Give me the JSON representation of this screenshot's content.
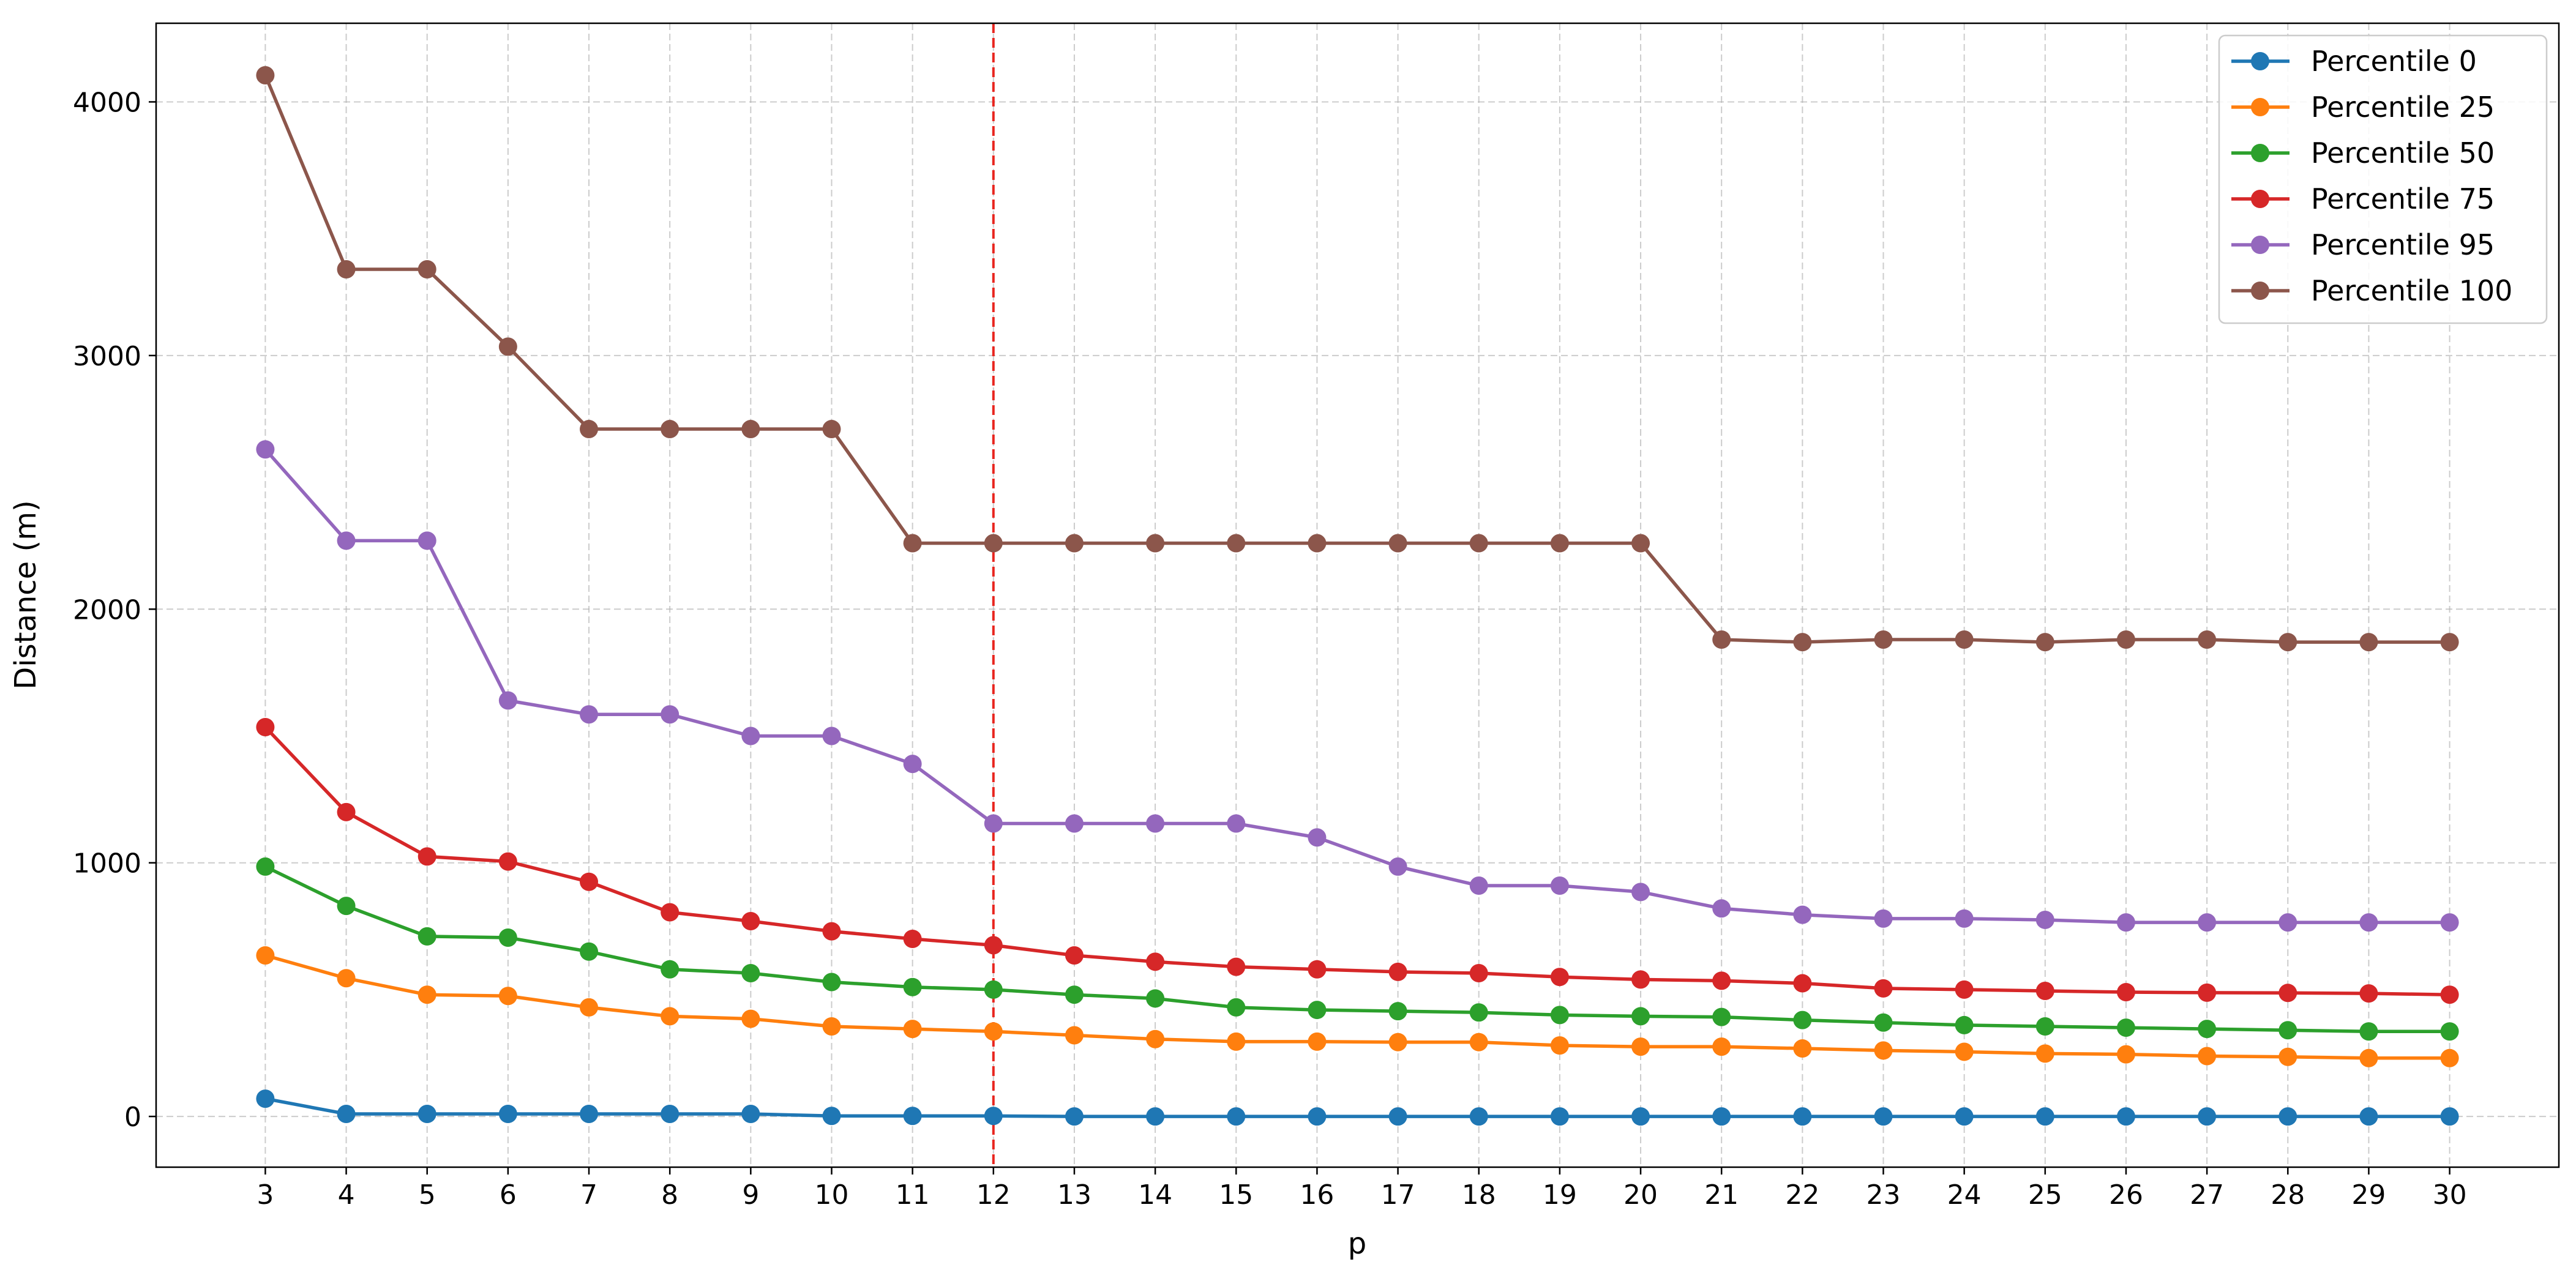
{
  "chart_data": {
    "type": "line",
    "xlabel": "p",
    "ylabel": "Distance (m)",
    "x": [
      3,
      4,
      5,
      6,
      7,
      8,
      9,
      10,
      11,
      12,
      13,
      14,
      15,
      16,
      17,
      18,
      19,
      20,
      21,
      22,
      23,
      24,
      25,
      26,
      27,
      28,
      29,
      30
    ],
    "x_ticks": [
      "3",
      "4",
      "5",
      "6",
      "7",
      "8",
      "9",
      "10",
      "11",
      "12",
      "13",
      "14",
      "15",
      "16",
      "17",
      "18",
      "19",
      "20",
      "21",
      "22",
      "23",
      "24",
      "25",
      "26",
      "27",
      "28",
      "29",
      "30"
    ],
    "y_ticks": [
      "0",
      "1000",
      "2000",
      "3000",
      "4000"
    ],
    "ylim": [
      -200,
      4310
    ],
    "xlim": [
      1.65,
      31.35
    ],
    "grid": true,
    "legend_position": "top-right",
    "reference_line": {
      "x": 12,
      "color": "#e8251f",
      "style": "dashed"
    },
    "series": [
      {
        "name": "Percentile 0",
        "color": "#1f77b4",
        "values": [
          70,
          10,
          10,
          10,
          10,
          10,
          10,
          2,
          2,
          2,
          0,
          0,
          0,
          0,
          0,
          0,
          0,
          0,
          0,
          0,
          0,
          0,
          0,
          0,
          0,
          0,
          0,
          0
        ]
      },
      {
        "name": "Percentile 25",
        "color": "#ff7f0e",
        "values": [
          635,
          545,
          480,
          475,
          430,
          395,
          385,
          355,
          345,
          335,
          320,
          305,
          295,
          295,
          293,
          293,
          280,
          275,
          275,
          268,
          260,
          255,
          248,
          245,
          238,
          235,
          230,
          230
        ]
      },
      {
        "name": "Percentile 50",
        "color": "#2ca02c",
        "values": [
          985,
          830,
          710,
          705,
          650,
          580,
          565,
          530,
          510,
          500,
          480,
          465,
          430,
          420,
          415,
          410,
          400,
          395,
          392,
          380,
          370,
          360,
          355,
          350,
          345,
          340,
          335,
          335
        ]
      },
      {
        "name": "Percentile 75",
        "color": "#d62728",
        "values": [
          1535,
          1200,
          1025,
          1005,
          925,
          805,
          770,
          730,
          700,
          675,
          635,
          610,
          590,
          580,
          570,
          565,
          550,
          540,
          535,
          525,
          505,
          500,
          495,
          490,
          488,
          487,
          485,
          480
        ]
      },
      {
        "name": "Percentile 95",
        "color": "#9467bd",
        "values": [
          2630,
          2270,
          2270,
          1640,
          1585,
          1585,
          1500,
          1500,
          1390,
          1155,
          1155,
          1155,
          1155,
          1100,
          985,
          910,
          910,
          885,
          820,
          795,
          780,
          780,
          775,
          765,
          765,
          765,
          765,
          765
        ]
      },
      {
        "name": "Percentile 100",
        "color": "#8c564b",
        "values": [
          4105,
          3340,
          3340,
          3035,
          2710,
          2710,
          2710,
          2710,
          2260,
          2260,
          2260,
          2260,
          2260,
          2260,
          2260,
          2260,
          2260,
          2260,
          1880,
          1870,
          1880,
          1880,
          1870,
          1880,
          1880,
          1870,
          1870,
          1870
        ]
      }
    ]
  }
}
